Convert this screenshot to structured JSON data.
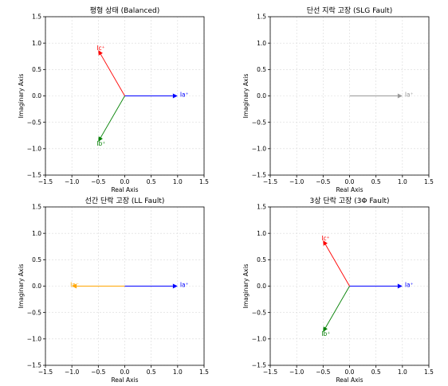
{
  "chart_data": [
    {
      "type": "vector",
      "title": "평형 상태 (Balanced)",
      "xlabel": "Real Axis",
      "ylabel": "Imaginary Axis",
      "xlim": [
        -1.5,
        1.5
      ],
      "ylim": [
        -1.5,
        1.5
      ],
      "ticks": [
        "−1.5",
        "−1.0",
        "−0.5",
        "0.0",
        "0.5",
        "1.0",
        "1.5"
      ],
      "tick_values": [
        -1.5,
        -1.0,
        -0.5,
        0.0,
        0.5,
        1.0,
        1.5
      ],
      "grid": true,
      "vectors": [
        {
          "label": "Ia⁺",
          "x": 1.0,
          "y": 0.0,
          "color": "#0000ff"
        },
        {
          "label": "Ib⁺",
          "x": -0.5,
          "y": -0.866,
          "color": "#008000"
        },
        {
          "label": "Ic⁺",
          "x": -0.5,
          "y": 0.866,
          "color": "#ff0000"
        }
      ]
    },
    {
      "type": "vector",
      "title": "단선 지락 고장 (SLG Fault)",
      "xlabel": "Real Axis",
      "ylabel": "Imaginary Axis",
      "xlim": [
        -1.5,
        1.5
      ],
      "ylim": [
        -1.5,
        1.5
      ],
      "ticks": [
        "−1.5",
        "−1.0",
        "−0.5",
        "0.0",
        "0.5",
        "1.0",
        "1.5"
      ],
      "tick_values": [
        -1.5,
        -1.0,
        -0.5,
        0.0,
        0.5,
        1.0,
        1.5
      ],
      "grid": true,
      "vectors": [
        {
          "label": "Ia⁺",
          "x": 1.0,
          "y": 0.0,
          "color": "#999999"
        }
      ]
    },
    {
      "type": "vector",
      "title": "선간 단락 고장 (LL Fault)",
      "xlabel": "Real Axis",
      "ylabel": "Imaginary Axis",
      "xlim": [
        -1.5,
        1.5
      ],
      "ylim": [
        -1.5,
        1.5
      ],
      "ticks": [
        "−1.5",
        "−1.0",
        "−0.5",
        "0.0",
        "0.5",
        "1.0",
        "1.5"
      ],
      "tick_values": [
        -1.5,
        -1.0,
        -0.5,
        0.0,
        0.5,
        1.0,
        1.5
      ],
      "grid": true,
      "vectors": [
        {
          "label": "Ia⁺",
          "x": 1.0,
          "y": 0.0,
          "color": "#0000ff"
        },
        {
          "label": "Ia⁻",
          "x": -1.0,
          "y": 0.0,
          "color": "#ffa500"
        }
      ]
    },
    {
      "type": "vector",
      "title": "3상 단락 고장 (3Φ Fault)",
      "xlabel": "Real Axis",
      "ylabel": "Imaginary Axis",
      "xlim": [
        -1.5,
        1.5
      ],
      "ylim": [
        -1.5,
        1.5
      ],
      "ticks": [
        "−1.5",
        "−1.0",
        "−0.5",
        "0.0",
        "0.5",
        "1.0",
        "1.5"
      ],
      "tick_values": [
        -1.5,
        -1.0,
        -0.5,
        0.0,
        0.5,
        1.0,
        1.5
      ],
      "grid": true,
      "vectors": [
        {
          "label": "Ia⁺",
          "x": 1.0,
          "y": 0.0,
          "color": "#0000ff"
        },
        {
          "label": "Ib⁺",
          "x": -0.5,
          "y": -0.866,
          "color": "#008000"
        },
        {
          "label": "Ic⁺",
          "x": -0.5,
          "y": 0.866,
          "color": "#ff0000"
        }
      ]
    }
  ]
}
